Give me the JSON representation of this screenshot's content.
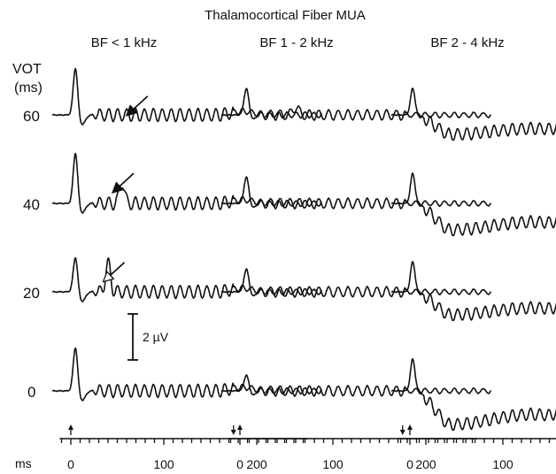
{
  "chart_data": {
    "type": "line",
    "title": "Thalamocortical Fiber MUA",
    "column_labels": [
      "BF < 1 kHz",
      "BF 1 - 2 kHz",
      "BF 2 - 4 kHz"
    ],
    "row_axis_label": "VOT\n(ms)",
    "row_axis_label_lines": [
      "VOT",
      "(ms)"
    ],
    "row_labels": [
      "60",
      "40",
      "20",
      "0"
    ],
    "vot_values_ms": [
      60,
      40,
      20,
      0
    ],
    "x_axis_label": "ms",
    "x_ticks": [
      0,
      100,
      200
    ],
    "x_tick_labels": [
      "0",
      "100",
      "200"
    ],
    "xlim": [
      -20,
      280
    ],
    "scale_bar_label": "2 µV",
    "scale_bar_uV": 2,
    "stimulus_onset_marker_ms": 0,
    "stimulus_offset_marker_ms": 175,
    "arrow_annotations": [
      {
        "column": 0,
        "row": 0,
        "style": "filled",
        "x_ms": 55
      },
      {
        "column": 0,
        "row": 1,
        "style": "filled",
        "x_ms": 40
      },
      {
        "column": 0,
        "row": 2,
        "style": "open",
        "x_ms": 30
      }
    ],
    "grid": false,
    "legend": "none"
  }
}
